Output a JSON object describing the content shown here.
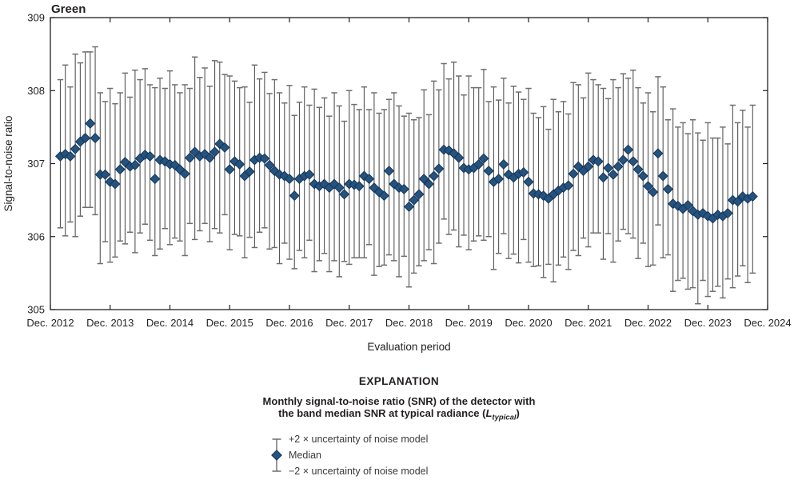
{
  "figure": {
    "title": "Green",
    "colors": {
      "median_fill": "#24537E",
      "median_stroke": "#16345A",
      "whisker": "#545454",
      "cap": "#6E6E6E",
      "axis": "#231F20",
      "text": "#231F20"
    }
  },
  "chart_data": {
    "type": "scatter",
    "subtype": "median-with-2sigma-error-bars",
    "title": "Green",
    "xlabel": "Evaluation period",
    "ylabel": "Signal-to-noise ratio",
    "x_tick_labels": [
      "Dec. 2012",
      "Dec. 2013",
      "Dec. 2014",
      "Dec. 2015",
      "Dec. 2016",
      "Dec. 2017",
      "Dec. 2018",
      "Dec. 2019",
      "Dec. 2020",
      "Dec. 2021",
      "Dec. 2022",
      "Dec. 2023",
      "Dec. 2024"
    ],
    "y_ticks": [
      305,
      306,
      307,
      308,
      309
    ],
    "ylim": [
      305,
      309
    ],
    "grid": false,
    "legend_position": "below",
    "x_interval": "monthly",
    "x_start": "Feb. 2013",
    "x_end": "Sep. 2024",
    "months_after_dec2012_start": 2,
    "n_points": 140,
    "median": [
      307.1,
      307.13,
      307.1,
      307.2,
      307.3,
      307.35,
      307.55,
      307.35,
      306.85,
      306.85,
      306.75,
      306.72,
      306.92,
      307.02,
      306.96,
      306.98,
      307.07,
      307.12,
      307.1,
      306.79,
      307.05,
      307.03,
      306.99,
      306.98,
      306.92,
      306.86,
      307.08,
      307.16,
      307.1,
      307.13,
      307.08,
      307.16,
      307.27,
      307.22,
      306.92,
      307.03,
      306.99,
      306.83,
      306.89,
      307.05,
      307.08,
      307.07,
      306.98,
      306.9,
      306.85,
      306.83,
      306.79,
      306.56,
      306.79,
      306.83,
      306.85,
      306.72,
      306.69,
      306.72,
      306.67,
      306.72,
      306.67,
      306.58,
      306.72,
      306.71,
      306.69,
      306.83,
      306.79,
      306.67,
      306.61,
      306.56,
      306.9,
      306.72,
      306.67,
      306.65,
      306.41,
      306.5,
      306.58,
      306.79,
      306.72,
      306.83,
      306.93,
      307.19,
      307.18,
      307.14,
      307.08,
      306.94,
      306.92,
      306.94,
      306.99,
      307.07,
      306.9,
      306.75,
      306.79,
      306.99,
      306.85,
      306.81,
      306.86,
      306.88,
      306.75,
      306.59,
      306.58,
      306.56,
      306.52,
      306.58,
      306.63,
      306.67,
      306.7,
      306.86,
      306.96,
      306.9,
      306.96,
      307.05,
      307.03,
      306.81,
      306.94,
      306.85,
      306.96,
      307.05,
      307.19,
      307.03,
      306.92,
      306.83,
      306.69,
      306.61,
      307.14,
      306.83,
      306.65,
      306.45,
      306.42,
      306.38,
      306.43,
      306.35,
      306.3,
      306.32,
      306.28,
      306.25,
      306.3,
      306.28,
      306.32,
      306.5,
      306.48,
      306.55,
      306.52,
      306.55
    ],
    "upper_2x_uncertainty_offset": [
      1.05,
      1.22,
      0.95,
      1.3,
      1.08,
      1.18,
      0.98,
      1.25,
      1.12,
      1.0,
      1.28,
      1.1,
      1.05,
      1.22,
      0.95,
      1.3,
      1.08,
      1.18,
      0.98,
      1.25,
      1.12,
      1.0,
      1.28,
      1.1,
      1.05,
      1.22,
      0.95,
      1.3,
      1.08,
      1.18,
      0.98,
      1.25,
      1.12,
      1.0,
      1.28,
      1.1,
      1.05,
      1.22,
      0.95,
      1.3,
      1.08,
      1.18,
      0.98,
      1.25,
      1.12,
      1.0,
      1.28,
      1.1,
      1.05,
      1.22,
      0.95,
      1.3,
      1.08,
      1.18,
      0.98,
      1.25,
      1.12,
      1.0,
      1.28,
      1.1,
      1.05,
      1.22,
      0.95,
      1.3,
      1.08,
      1.18,
      0.98,
      1.25,
      1.12,
      1.0,
      1.28,
      1.1,
      1.05,
      1.22,
      0.95,
      1.3,
      1.08,
      1.18,
      0.98,
      1.25,
      1.12,
      1.0,
      1.28,
      1.1,
      1.05,
      1.22,
      0.95,
      1.3,
      1.08,
      1.18,
      0.98,
      1.25,
      1.12,
      1.0,
      1.28,
      1.1,
      1.05,
      1.22,
      0.95,
      1.3,
      1.08,
      1.18,
      0.98,
      1.25,
      1.12,
      1.0,
      1.28,
      1.1,
      1.05,
      1.22,
      0.95,
      1.3,
      1.08,
      1.18,
      0.98,
      1.25,
      1.12,
      1.0,
      1.28,
      1.1,
      1.05,
      1.22,
      0.95,
      1.3,
      1.08,
      1.18,
      0.98,
      1.25,
      1.12,
      1.0,
      1.28,
      1.1,
      1.05,
      1.22,
      0.95,
      1.3,
      1.08,
      1.18,
      0.98,
      1.25
    ],
    "lower_2x_uncertainty_offset": [
      0.98,
      1.12,
      0.9,
      1.2,
      1.02,
      0.95,
      1.15,
      1.05,
      1.22,
      0.92,
      1.1,
      1.0,
      0.98,
      1.12,
      0.9,
      1.2,
      1.02,
      0.95,
      1.15,
      1.05,
      1.22,
      0.92,
      1.1,
      1.0,
      0.98,
      1.12,
      0.9,
      1.2,
      1.02,
      0.95,
      1.15,
      1.05,
      1.22,
      0.92,
      1.1,
      1.0,
      0.98,
      1.12,
      0.9,
      1.2,
      1.02,
      0.95,
      1.15,
      1.05,
      1.22,
      0.92,
      1.1,
      1.0,
      0.98,
      1.12,
      0.9,
      1.2,
      1.02,
      0.95,
      1.15,
      1.05,
      1.22,
      0.92,
      1.1,
      1.0,
      0.98,
      1.12,
      0.9,
      1.2,
      1.02,
      0.95,
      1.15,
      1.05,
      1.22,
      0.92,
      1.1,
      1.0,
      0.98,
      1.12,
      0.9,
      1.2,
      1.02,
      0.95,
      1.15,
      1.05,
      1.22,
      0.92,
      1.1,
      1.0,
      0.98,
      1.12,
      0.9,
      1.2,
      1.02,
      0.95,
      1.15,
      1.05,
      1.22,
      0.92,
      1.1,
      1.0,
      0.98,
      1.12,
      0.9,
      1.2,
      1.02,
      0.95,
      1.15,
      1.05,
      1.22,
      0.92,
      1.1,
      1.0,
      0.98,
      1.12,
      0.9,
      1.2,
      1.02,
      0.95,
      1.15,
      1.05,
      1.22,
      0.92,
      1.1,
      1.0,
      0.98,
      1.12,
      0.9,
      1.2,
      1.02,
      0.95,
      1.15,
      1.05,
      1.22,
      0.92,
      1.1,
      1.0,
      0.98,
      1.12,
      0.9,
      1.2,
      1.02,
      0.95,
      1.15,
      1.05
    ]
  },
  "explanation": {
    "header": "EXPLANATION",
    "series_title_line1": "Monthly signal-to-noise ratio (SNR) of the detector with",
    "series_title_line2_pre": "the band median SNR at typical radiance (",
    "series_title_L": "L",
    "series_title_sub": "typical",
    "series_title_close": ")",
    "items": [
      {
        "label": "+2 × uncertainty of noise model"
      },
      {
        "label": "Median"
      },
      {
        "label": "−2 × uncertainty of noise model"
      }
    ]
  }
}
